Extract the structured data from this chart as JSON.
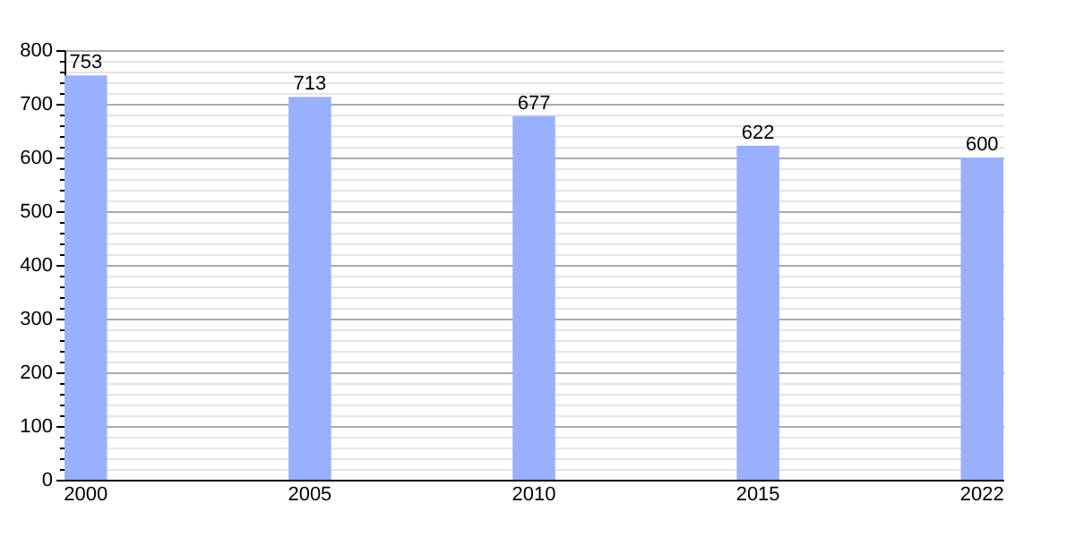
{
  "chart_data": {
    "type": "bar",
    "categories": [
      "2000",
      "2005",
      "2010",
      "2015",
      "2022"
    ],
    "values": [
      753,
      713,
      677,
      622,
      600
    ],
    "color": "#99b0ff",
    "ylim": [
      0,
      800
    ],
    "yticks": [
      0,
      {
        "value": 20,
        "label": null
      },
      {
        "value": 40,
        "label": null
      },
      {
        "value": 60,
        "label": null
      },
      {
        "value": 80,
        "label": null
      },
      100,
      {
        "value": 120,
        "label": null
      },
      {
        "value": 140,
        "label": null
      },
      {
        "value": 160,
        "label": null
      },
      {
        "value": 180,
        "label": null
      },
      200,
      {
        "value": 220,
        "label": null
      },
      {
        "value": 240,
        "label": null
      },
      {
        "value": 260,
        "label": null
      },
      {
        "value": 280,
        "label": null
      },
      300,
      {
        "value": 320,
        "label": null
      },
      {
        "value": 340,
        "label": null
      },
      {
        "value": 360,
        "label": null
      },
      {
        "value": 380,
        "label": null
      },
      400,
      {
        "value": 420,
        "label": null
      },
      {
        "value": 440,
        "label": null
      },
      {
        "value": 460,
        "label": null
      },
      {
        "value": 480,
        "label": null
      },
      500,
      {
        "value": 520,
        "label": null
      },
      {
        "value": 540,
        "label": null
      },
      {
        "value": 560,
        "label": null
      },
      {
        "value": 580,
        "label": null
      },
      600,
      {
        "value": 620,
        "label": null
      },
      {
        "value": 640,
        "label": null
      },
      {
        "value": 660,
        "label": null
      },
      {
        "value": 680,
        "label": null
      },
      700,
      {
        "value": 720,
        "label": null
      },
      {
        "value": 740,
        "label": null
      },
      {
        "value": 760,
        "label": null
      },
      {
        "value": 780,
        "label": null
      },
      800
    ],
    "grid": "y",
    "data_labels": true
  }
}
